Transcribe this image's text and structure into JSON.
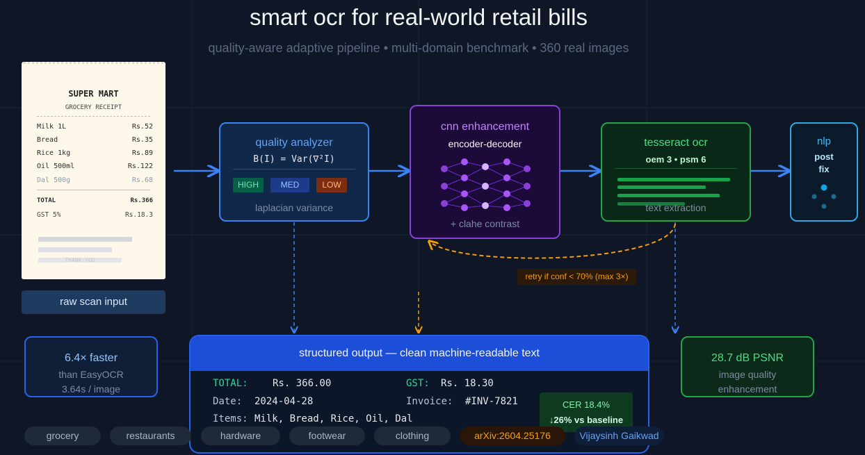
{
  "header": {
    "title": "smart ocr for real-world retail bills",
    "subtitle": "quality-aware adaptive pipeline • multi-domain benchmark • 360 real images"
  },
  "receipt": {
    "store": "SUPER MART",
    "kind": "GROCERY RECEIPT",
    "items": [
      {
        "name": "Milk 1L",
        "price": "Rs.52"
      },
      {
        "name": "Bread",
        "price": "Rs.35"
      },
      {
        "name": "Rice 1kg",
        "price": "Rs.89"
      },
      {
        "name": "Oil 500ml",
        "price": "Rs.122"
      },
      {
        "name": "Dal 500g",
        "price": "Rs.68"
      }
    ],
    "total": {
      "name": "TOTAL",
      "price": "Rs.366"
    },
    "gst": {
      "name": "GST 5%",
      "price": "Rs.18.3"
    },
    "footer": "THANK YOU",
    "caption": "raw scan input"
  },
  "quality_analyzer": {
    "title": "quality analyzer",
    "formula": "B(I) = Var(∇²I)",
    "levels": [
      "HIGH",
      "MED",
      "LOW"
    ],
    "caption": "laplacian variance"
  },
  "cnn": {
    "title": "cnn enhancement",
    "subtitle": "encoder-decoder",
    "caption": "+ clahe contrast"
  },
  "tesseract": {
    "title": "tesseract ocr",
    "subtitle": "oem 3 • psm 6",
    "caption": "text extraction"
  },
  "nlp": {
    "title": "nlp",
    "lines": [
      "post",
      "fix"
    ]
  },
  "retry": "retry if conf < 70% (max 3×)",
  "speed": {
    "headline": "6.4× faster",
    "lines": [
      "than EasyOCR",
      "3.64s / image"
    ]
  },
  "psnr": {
    "headline": "28.7 dB PSNR",
    "lines": [
      "image quality",
      "enhancement"
    ]
  },
  "output": {
    "title": "structured output — clean machine-readable text",
    "fields": [
      {
        "key": "TOTAL:",
        "value": "Rs. 366.00"
      },
      {
        "key": "GST:",
        "value": "Rs. 18.30"
      },
      {
        "key": "Date:",
        "value": "2024-04-28"
      },
      {
        "key": "Invoice:",
        "value": "#INV-7821"
      },
      {
        "key": "Items:",
        "value": "Milk, Bread, Rice, Oil, Dal"
      }
    ],
    "cer": "CER 18.4%",
    "improvement": "↓26% vs baseline"
  },
  "footer": {
    "domains": [
      "grocery",
      "restaurants",
      "hardware",
      "footwear",
      "clothing"
    ],
    "arxiv": "arXiv:2604.25176",
    "author": "Vijaysinh Gaikwad"
  }
}
